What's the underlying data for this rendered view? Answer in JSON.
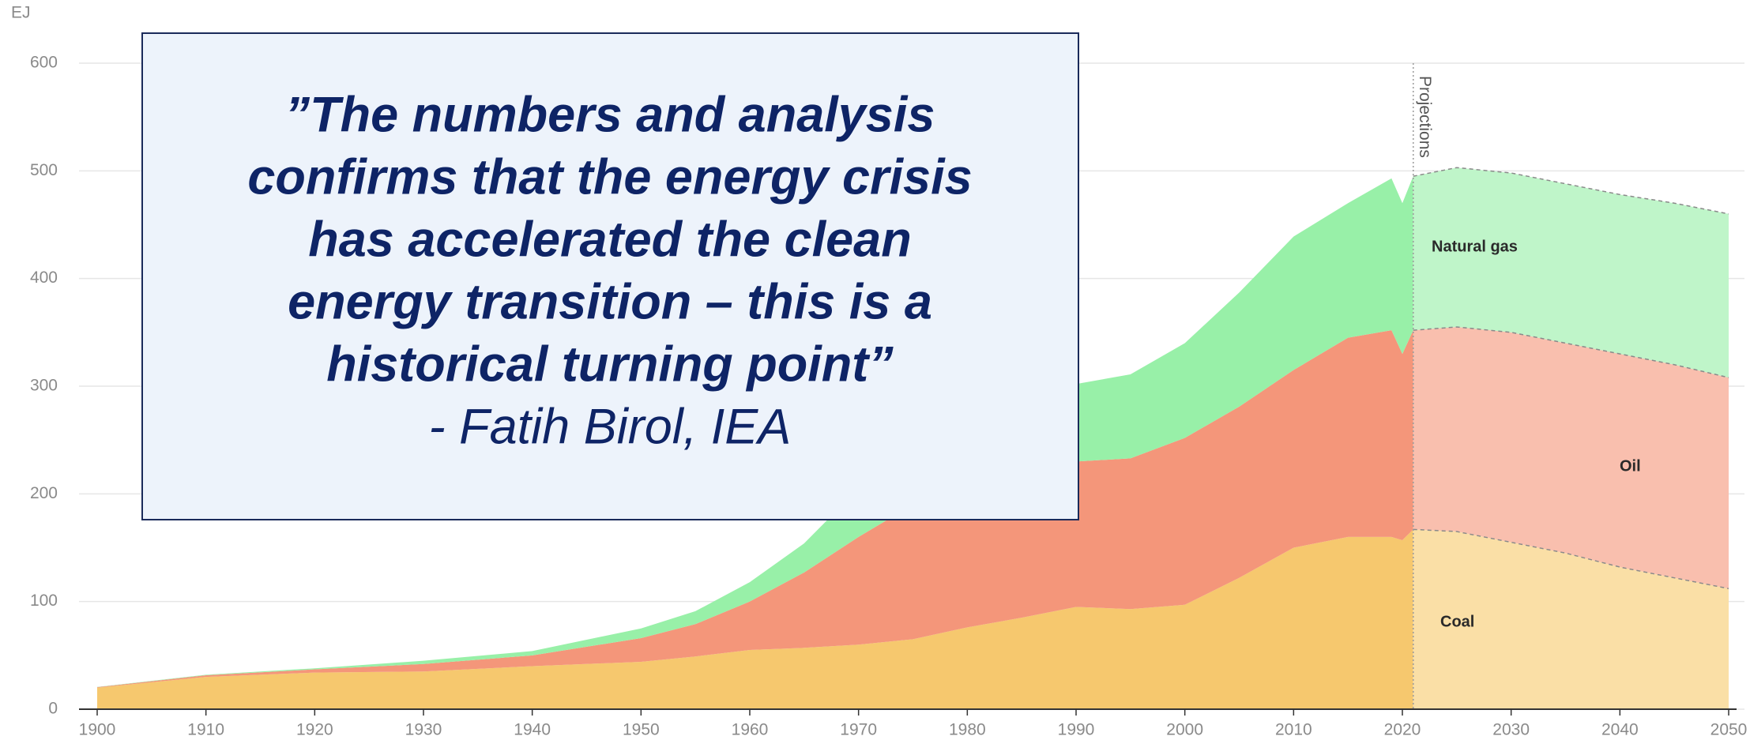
{
  "chart_data": {
    "type": "stacked_area",
    "y_label": "EJ",
    "x": [
      1900,
      1910,
      1920,
      1930,
      1940,
      1950,
      1955,
      1960,
      1965,
      1970,
      1975,
      1980,
      1985,
      1990,
      1995,
      2000,
      2005,
      2010,
      2015,
      2019,
      2020,
      2021,
      2025,
      2030,
      2035,
      2040,
      2045,
      2050
    ],
    "series": [
      {
        "name": "Coal",
        "color": "#f6c86e",
        "projection_color": "#fadfa6",
        "values": [
          20,
          30,
          34,
          35,
          40,
          44,
          49,
          55,
          57,
          60,
          65,
          76,
          85,
          95,
          93,
          97,
          122,
          150,
          160,
          160,
          157,
          167,
          165,
          155,
          145,
          132,
          122,
          112
        ]
      },
      {
        "name": "Oil",
        "color": "#f4967a",
        "projection_color": "#f9bfae",
        "values": [
          0.5,
          1.5,
          3,
          7,
          10,
          22,
          30,
          45,
          70,
          100,
          125,
          135,
          125,
          135,
          140,
          155,
          159,
          165,
          185,
          192,
          173,
          185,
          190,
          195,
          195,
          198,
          198,
          196
        ]
      },
      {
        "name": "Natural gas",
        "color": "#98f0a8",
        "projection_color": "#bff5c9",
        "values": [
          0.2,
          0.5,
          1,
          3,
          4,
          9,
          12,
          18,
          27,
          45,
          50,
          56,
          62,
          72,
          78,
          88,
          106,
          124,
          125,
          141,
          140,
          143,
          148,
          148,
          148,
          148,
          150,
          152
        ]
      }
    ],
    "annotations": [
      {
        "x": 2021,
        "label": "Projections"
      }
    ],
    "xlim": [
      1900,
      2050
    ],
    "xticks": [
      1900,
      1910,
      1920,
      1930,
      1940,
      1950,
      1960,
      1970,
      1980,
      1990,
      2000,
      2010,
      2020,
      2030,
      2040,
      2050
    ],
    "ylim": [
      0,
      600
    ],
    "yticks": [
      0,
      100,
      200,
      300,
      400,
      500,
      600
    ],
    "grid": true
  },
  "quote": {
    "lines": [
      "”The numbers and analysis",
      "confirms that the energy crisis",
      "has accelerated the clean",
      "energy transition – this is a",
      "historical turning point”"
    ],
    "attribution": "- Fatih Birol, IEA"
  }
}
